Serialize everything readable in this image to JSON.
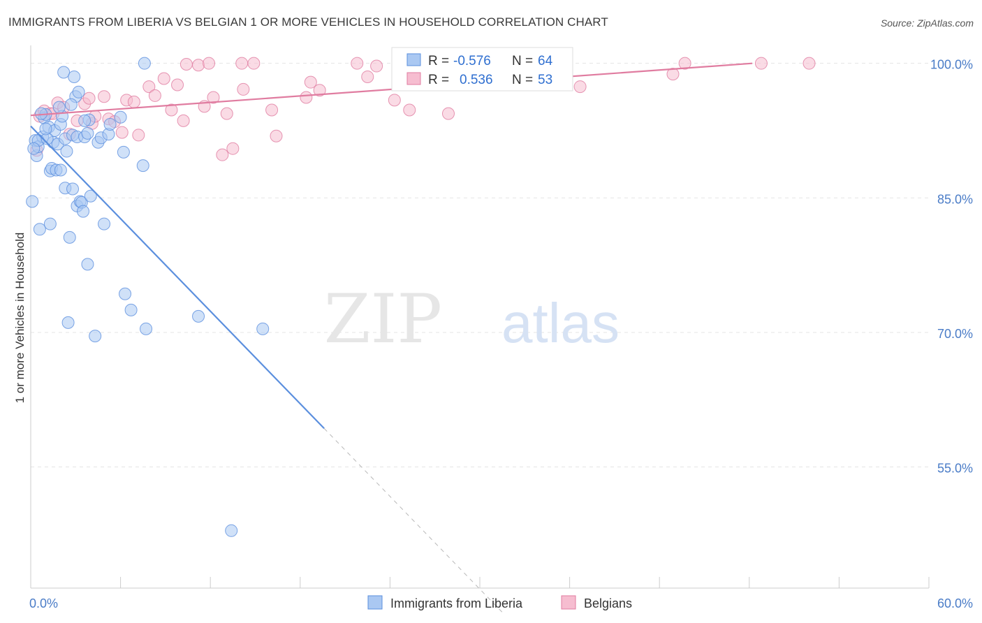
{
  "title": "IMMIGRANTS FROM LIBERIA VS BELGIAN 1 OR MORE VEHICLES IN HOUSEHOLD CORRELATION CHART",
  "source": "Source: ZipAtlas.com",
  "watermark": {
    "zip": "ZIP",
    "atlas": "atlas"
  },
  "colors": {
    "blue": "#5b8fde",
    "blue_fill": "#aac8f2",
    "pink": "#e07ca0",
    "pink_fill": "#f6bdd0",
    "tick_text": "#4a7cc7"
  },
  "chart_data": {
    "type": "scatter",
    "ylabel": "1 or more Vehicles in Household",
    "xlim": [
      0,
      60
    ],
    "ylim": [
      41.5,
      102
    ],
    "x_tick_labels": [
      {
        "x": 0,
        "label": "0.0%"
      },
      {
        "x": 60,
        "label": "60.0%"
      }
    ],
    "y_tick_labels": [
      {
        "y": 100,
        "label": "100.0%"
      },
      {
        "y": 85,
        "label": "85.0%"
      },
      {
        "y": 70,
        "label": "70.0%"
      },
      {
        "y": 55,
        "label": "55.0%"
      }
    ],
    "legend_stats": [
      {
        "r_label": "R =",
        "r_value": "-0.576",
        "n_label": "N =",
        "n_value": "64"
      },
      {
        "r_label": "R =",
        "r_value": "0.536",
        "n_label": "N =",
        "n_value": "53"
      }
    ],
    "series": [
      {
        "name": "Immigrants from Liberia",
        "color": "#5b8fde",
        "trend": {
          "x0": 0,
          "y0": 93.0,
          "x1": 19.6,
          "y1": 59.3,
          "dash_to_x": 31.5,
          "dash_to_y": 38.8
        },
        "points": [
          [
            0.1,
            84.6
          ],
          [
            0.3,
            91.4
          ],
          [
            0.4,
            89.7
          ],
          [
            0.5,
            90.7
          ],
          [
            0.6,
            81.5
          ],
          [
            0.8,
            91.8
          ],
          [
            0.9,
            93.9
          ],
          [
            1.0,
            94.3
          ],
          [
            1.2,
            92.9
          ],
          [
            1.3,
            88.0
          ],
          [
            1.4,
            88.3
          ],
          [
            1.3,
            82.1
          ],
          [
            1.5,
            91.2
          ],
          [
            1.6,
            92.5
          ],
          [
            1.7,
            88.1
          ],
          [
            1.8,
            91.0
          ],
          [
            2.0,
            93.2
          ],
          [
            2.1,
            94.1
          ],
          [
            2.2,
            99.0
          ],
          [
            2.3,
            86.1
          ],
          [
            2.3,
            91.6
          ],
          [
            2.4,
            90.2
          ],
          [
            2.5,
            71.1
          ],
          [
            2.6,
            80.6
          ],
          [
            2.8,
            92.0
          ],
          [
            2.8,
            86.0
          ],
          [
            2.9,
            98.5
          ],
          [
            3.0,
            96.3
          ],
          [
            3.1,
            91.8
          ],
          [
            3.1,
            84.1
          ],
          [
            3.2,
            96.8
          ],
          [
            3.3,
            84.6
          ],
          [
            3.4,
            84.5
          ],
          [
            3.5,
            83.5
          ],
          [
            3.6,
            91.8
          ],
          [
            3.8,
            92.2
          ],
          [
            3.8,
            77.6
          ],
          [
            3.9,
            93.7
          ],
          [
            4.0,
            85.2
          ],
          [
            4.3,
            69.6
          ],
          [
            4.5,
            91.2
          ],
          [
            4.7,
            91.7
          ],
          [
            4.9,
            82.1
          ],
          [
            5.2,
            92.1
          ],
          [
            5.3,
            93.2
          ],
          [
            6.0,
            94.0
          ],
          [
            6.2,
            90.1
          ],
          [
            6.3,
            74.3
          ],
          [
            6.7,
            72.5
          ],
          [
            7.5,
            88.6
          ],
          [
            7.7,
            70.4
          ],
          [
            7.6,
            100.0
          ],
          [
            11.2,
            71.8
          ],
          [
            13.4,
            47.9
          ],
          [
            15.5,
            70.4
          ],
          [
            1.9,
            95.1
          ],
          [
            0.5,
            91.4
          ],
          [
            0.7,
            94.4
          ],
          [
            1.1,
            91.6
          ],
          [
            2.7,
            95.4
          ],
          [
            3.6,
            93.6
          ],
          [
            0.2,
            90.5
          ],
          [
            1.0,
            92.7
          ],
          [
            2.0,
            88.1
          ]
        ]
      },
      {
        "name": "Belgians",
        "color": "#e07ca0",
        "trend": {
          "x0": 0,
          "y0": 94.2,
          "x1": 48.2,
          "y1": 100.0
        },
        "points": [
          [
            0.4,
            90.3
          ],
          [
            0.6,
            94.1
          ],
          [
            0.9,
            94.7
          ],
          [
            1.3,
            94.4
          ],
          [
            1.8,
            95.6
          ],
          [
            2.2,
            95.1
          ],
          [
            2.6,
            92.1
          ],
          [
            3.1,
            93.6
          ],
          [
            3.6,
            95.5
          ],
          [
            4.1,
            93.3
          ],
          [
            4.3,
            94.1
          ],
          [
            4.9,
            96.3
          ],
          [
            5.2,
            93.8
          ],
          [
            5.6,
            93.5
          ],
          [
            6.1,
            92.3
          ],
          [
            6.4,
            95.9
          ],
          [
            6.9,
            95.7
          ],
          [
            7.2,
            92.0
          ],
          [
            7.9,
            97.4
          ],
          [
            8.3,
            96.4
          ],
          [
            8.9,
            98.3
          ],
          [
            9.4,
            94.8
          ],
          [
            9.8,
            97.6
          ],
          [
            10.2,
            93.6
          ],
          [
            10.4,
            99.9
          ],
          [
            11.2,
            99.8
          ],
          [
            11.6,
            95.2
          ],
          [
            11.9,
            100.0
          ],
          [
            12.2,
            96.2
          ],
          [
            12.8,
            89.8
          ],
          [
            13.1,
            94.4
          ],
          [
            13.5,
            90.5
          ],
          [
            14.1,
            100.0
          ],
          [
            14.2,
            97.1
          ],
          [
            14.9,
            100.0
          ],
          [
            16.1,
            94.8
          ],
          [
            16.4,
            91.9
          ],
          [
            18.4,
            96.2
          ],
          [
            18.7,
            97.9
          ],
          [
            19.3,
            97.0
          ],
          [
            21.8,
            100.0
          ],
          [
            22.5,
            98.5
          ],
          [
            23.1,
            99.7
          ],
          [
            24.3,
            95.9
          ],
          [
            25.3,
            94.8
          ],
          [
            27.9,
            94.4
          ],
          [
            36.7,
            97.4
          ],
          [
            42.9,
            98.8
          ],
          [
            43.7,
            100.0
          ],
          [
            48.8,
            100.0
          ],
          [
            52.0,
            100.0
          ],
          [
            1.5,
            94.4
          ],
          [
            3.9,
            96.1
          ]
        ]
      }
    ]
  }
}
